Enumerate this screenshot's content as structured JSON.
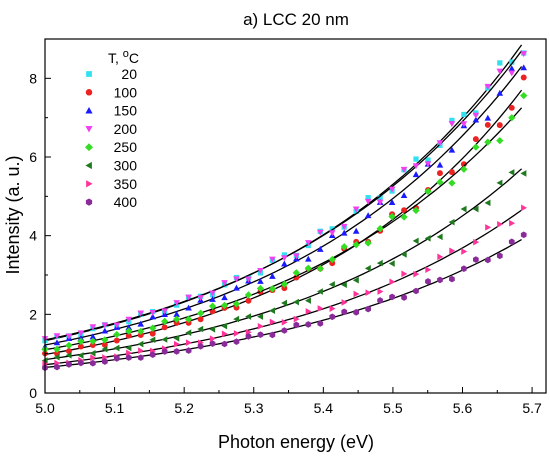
{
  "chart_data": {
    "type": "scatter",
    "title": "a) LCC 20 nm",
    "xlabel": "Photon energy (eV)",
    "ylabel": "Intensity (a. u.)",
    "xlim": [
      5.0,
      5.72
    ],
    "ylim": [
      0,
      9
    ],
    "xticks": [
      "5.0",
      "5.1",
      "5.2",
      "5.3",
      "5.4",
      "5.5",
      "5.6",
      "5.7"
    ],
    "yticks": [
      "0",
      "2",
      "4",
      "6",
      "8"
    ],
    "legend_title_parts": [
      "T, ",
      "o",
      "C"
    ],
    "legend_placement": "top-left",
    "fit_lines": true,
    "series": [
      {
        "name": "20",
        "marker": "square",
        "color": "#33e0f0",
        "y_start": 1.33,
        "y_end": 8.85
      },
      {
        "name": "100",
        "marker": "circle",
        "color": "#ee2222",
        "y_start": 0.98,
        "y_end": 7.7
      },
      {
        "name": "150",
        "marker": "triangle-up",
        "color": "#1a1aff",
        "y_start": 1.22,
        "y_end": 8.3
      },
      {
        "name": "200",
        "marker": "triangle-down",
        "color": "#f040f0",
        "y_start": 1.35,
        "y_end": 8.7
      },
      {
        "name": "250",
        "marker": "diamond",
        "color": "#33dd22",
        "y_start": 1.1,
        "y_end": 7.25
      },
      {
        "name": "300",
        "marker": "triangle-left",
        "color": "#1f7a1f",
        "y_start": 0.85,
        "y_end": 5.7
      },
      {
        "name": "350",
        "marker": "triangle-right",
        "color": "#ff3399",
        "y_start": 0.72,
        "y_end": 4.65
      },
      {
        "name": "400",
        "marker": "hexagon",
        "color": "#8a2b9a",
        "y_start": 0.65,
        "y_end": 3.9
      }
    ]
  }
}
